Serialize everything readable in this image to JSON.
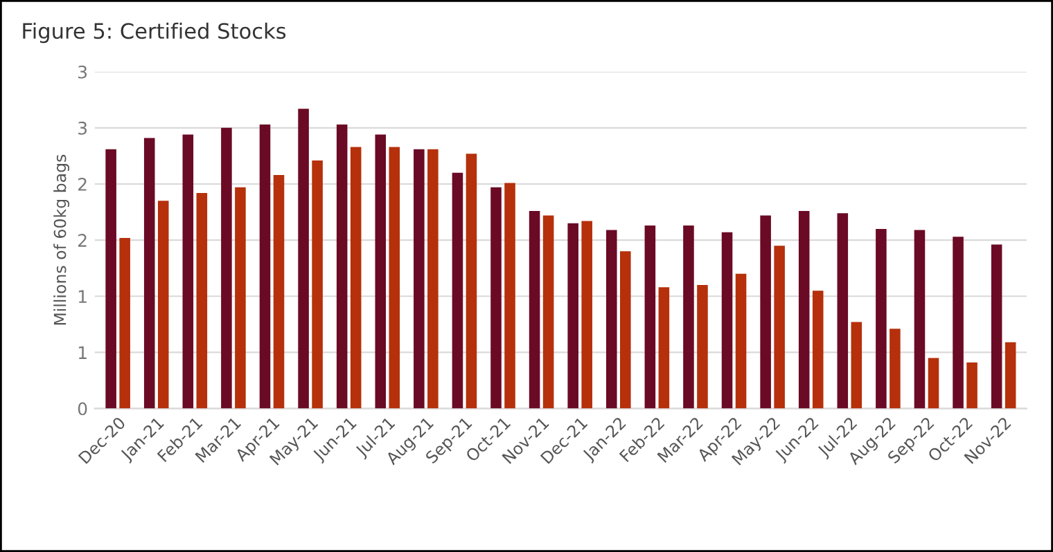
{
  "chart_data": {
    "type": "bar",
    "title": "Figure 5: Certified Stocks",
    "ylabel": "Millions of 60kg bags",
    "categories": [
      "Dec-20",
      "Jan-21",
      "Feb-21",
      "Mar-21",
      "Apr-21",
      "May-21",
      "Jun-21",
      "Jul-21",
      "Aug-21",
      "Sep-21",
      "Oct-21",
      "Nov-21",
      "Dec-21",
      "Jan-22",
      "Feb-22",
      "Mar-22",
      "Apr-22",
      "May-22",
      "Jun-22",
      "Jul-22",
      "Aug-22",
      "Sep-22",
      "Oct-22",
      "Nov-22"
    ],
    "series": [
      {
        "color": "#6b0a25",
        "values": [
          2.31,
          2.41,
          2.44,
          2.5,
          2.53,
          2.67,
          2.53,
          2.44,
          2.31,
          2.1,
          1.97,
          1.76,
          1.65,
          1.59,
          1.63,
          1.63,
          1.57,
          1.72,
          1.76,
          1.74,
          1.6,
          1.59,
          1.53,
          1.46
        ]
      },
      {
        "color": "#b5300b",
        "values": [
          1.52,
          1.85,
          1.92,
          1.97,
          2.08,
          2.21,
          2.33,
          2.33,
          2.31,
          2.27,
          2.01,
          1.72,
          1.67,
          1.4,
          1.08,
          1.1,
          1.2,
          1.45,
          1.05,
          0.77,
          0.71,
          0.45,
          0.41,
          0.59
        ]
      }
    ],
    "ylim": [
      0,
      3
    ],
    "yticks": [
      0,
      {
        "value": 0.5,
        "label": "1"
      },
      1,
      {
        "value": 1.5,
        "label": "2"
      },
      2,
      {
        "value": 2.5,
        "label": "3"
      },
      3
    ],
    "grid": "y"
  }
}
